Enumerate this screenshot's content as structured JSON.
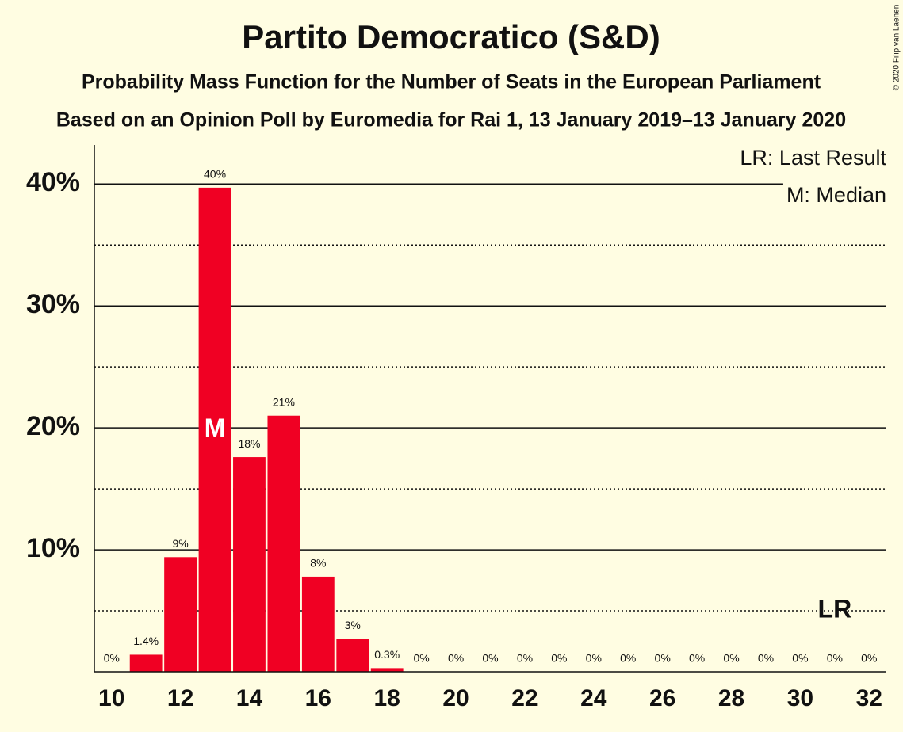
{
  "chart_data": {
    "type": "bar",
    "title": "Partito Democratico (S&D)",
    "subtitles": [
      "Probability Mass Function for the Number of Seats in the European Parliament",
      "Based on an Opinion Poll by Euromedia for Rai 1, 13 January 2019–13 January 2020"
    ],
    "x": [
      10,
      11,
      12,
      13,
      14,
      15,
      16,
      17,
      18,
      19,
      20,
      21,
      22,
      23,
      24,
      25,
      26,
      27,
      28,
      29,
      30,
      31,
      32
    ],
    "values": [
      0,
      1.4,
      9.4,
      39.7,
      17.6,
      21.0,
      7.8,
      2.7,
      0.3,
      0,
      0,
      0,
      0,
      0,
      0,
      0,
      0,
      0,
      0,
      0,
      0,
      0,
      0
    ],
    "value_labels": [
      "0%",
      "1.4%",
      "9%",
      "40%",
      "18%",
      "21%",
      "8%",
      "3%",
      "0.3%",
      "0%",
      "0%",
      "0%",
      "0%",
      "0%",
      "0%",
      "0%",
      "0%",
      "0%",
      "0%",
      "0%",
      "0%",
      "0%",
      "0%"
    ],
    "color": "#f00023",
    "xlim": [
      9.5,
      32.5
    ],
    "xticks": [
      10,
      12,
      14,
      16,
      18,
      20,
      22,
      24,
      26,
      28,
      30,
      32
    ],
    "ylim": [
      0,
      43.2
    ],
    "yticks": [
      {
        "value": 10,
        "label": "10%"
      },
      {
        "value": 20,
        "label": "20%"
      },
      {
        "value": 30,
        "label": "30%"
      },
      {
        "value": 40,
        "label": "40%"
      }
    ],
    "minor_yticks": [
      5,
      15,
      25,
      35
    ],
    "grid": true,
    "median": {
      "x": 13,
      "label": "M"
    },
    "last_result": {
      "x": 31,
      "label": "LR"
    },
    "legend": [
      "LR: Last Result",
      "M: Median"
    ],
    "legend_position": "top-right",
    "copyright": "© 2020 Filip van Laenen"
  }
}
